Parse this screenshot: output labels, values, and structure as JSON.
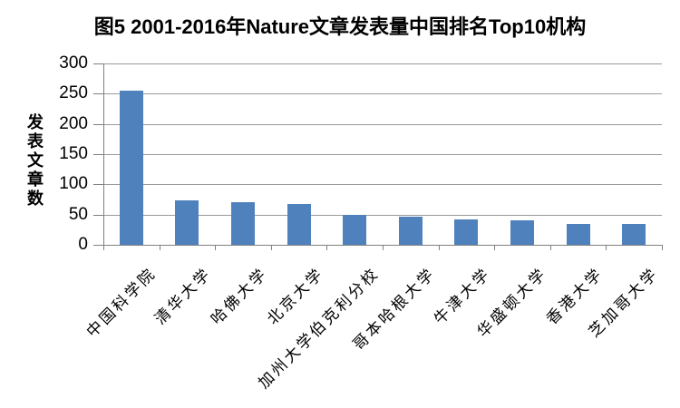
{
  "title": "图5 2001-2016年Nature文章发表量中国排名Top10机构",
  "colors": {
    "bar": "#4F81BD",
    "gridline": "#9a9a9a",
    "axis": "#808080",
    "text": "#000000",
    "background": "#FFFFFF"
  },
  "chart_data": {
    "type": "bar",
    "title": "图5 2001-2016年Nature文章发表量中国排名Top10机构",
    "xlabel": "",
    "ylabel": "发表文章数",
    "categories": [
      "中国科学院",
      "清华大学",
      "哈佛大学",
      "北京大学",
      "加州大学伯克利分校",
      "哥本哈根大学",
      "牛津大学",
      "华盛顿大学",
      "香港大学",
      "芝加哥大学"
    ],
    "values": [
      255,
      73,
      70,
      68,
      49,
      46,
      42,
      40,
      35,
      35
    ],
    "ylim": [
      0,
      300
    ],
    "yticks": [
      0,
      50,
      100,
      150,
      200,
      250,
      300
    ],
    "grid": true,
    "legend": false,
    "category_label_rotation_deg": -45
  }
}
